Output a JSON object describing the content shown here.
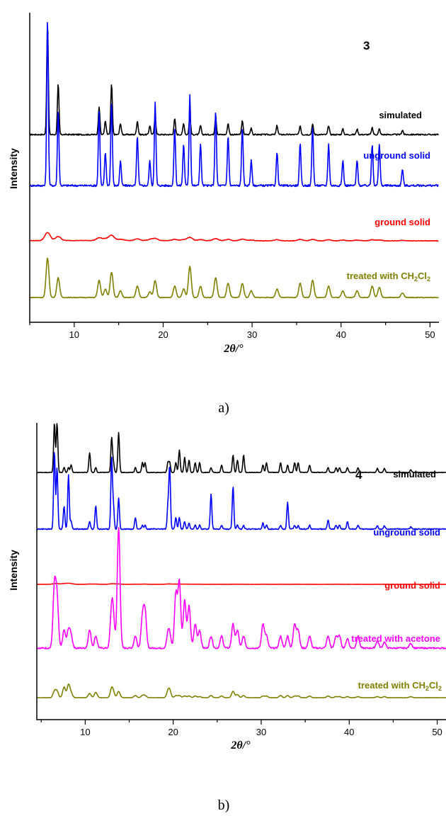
{
  "chart_data": [
    {
      "type": "line",
      "panel_letter": "a)",
      "sample_number": "3",
      "xlabel": "2θ/°",
      "ylabel": "Intensity",
      "xlim": [
        5,
        51
      ],
      "xticks": [
        10,
        20,
        30,
        40,
        50
      ],
      "peaks_x": [
        7.0,
        8.2,
        12.8,
        13.5,
        14.2,
        15.2,
        17.1,
        18.5,
        19.1,
        21.3,
        22.3,
        23.0,
        24.2,
        25.9,
        27.3,
        28.9,
        29.9,
        32.8,
        35.4,
        36.8,
        38.6,
        40.2,
        41.8,
        43.5,
        44.3,
        46.9
      ],
      "series": [
        {
          "name": "simulated",
          "color": "#000000",
          "values": [
            1.0,
            0.45,
            0.25,
            0.12,
            0.45,
            0.1,
            0.12,
            0.08,
            0.15,
            0.14,
            0.1,
            0.16,
            0.08,
            0.15,
            0.1,
            0.12,
            0.06,
            0.08,
            0.08,
            0.09,
            0.08,
            0.05,
            0.05,
            0.06,
            0.05,
            0.04
          ]
        },
        {
          "name": "unground solid",
          "color": "#0000ff",
          "values": [
            1.0,
            0.45,
            0.45,
            0.2,
            0.5,
            0.15,
            0.3,
            0.15,
            0.5,
            0.35,
            0.25,
            0.55,
            0.25,
            0.45,
            0.3,
            0.35,
            0.15,
            0.2,
            0.25,
            0.35,
            0.25,
            0.15,
            0.15,
            0.25,
            0.25,
            0.1
          ]
        },
        {
          "name": "ground solid",
          "color": "#ff0000",
          "values": [
            0.3,
            0.15,
            0.1,
            0.06,
            0.2,
            0.05,
            0.06,
            0.04,
            0.08,
            0.05,
            0.04,
            0.12,
            0.04,
            0.08,
            0.05,
            0.06,
            0.03,
            0.04,
            0.05,
            0.05,
            0.04,
            0.03,
            0.03,
            0.04,
            0.03,
            0.02
          ]
        },
        {
          "name": "treated with CH2Cl2",
          "color": "#808000",
          "values": [
            0.7,
            0.35,
            0.3,
            0.15,
            0.45,
            0.12,
            0.2,
            0.1,
            0.3,
            0.2,
            0.15,
            0.55,
            0.2,
            0.35,
            0.25,
            0.25,
            0.12,
            0.15,
            0.25,
            0.3,
            0.2,
            0.12,
            0.12,
            0.2,
            0.18,
            0.08
          ]
        }
      ]
    },
    {
      "type": "line",
      "panel_letter": "b)",
      "sample_number": "4",
      "xlabel": "2θ/°",
      "ylabel": "Intensity",
      "xlim": [
        4.5,
        51
      ],
      "xticks": [
        10,
        20,
        30,
        40,
        50
      ],
      "peaks_x": [
        6.5,
        6.8,
        7.6,
        8.1,
        8.4,
        10.5,
        11.2,
        13.0,
        13.2,
        13.8,
        15.7,
        16.5,
        16.8,
        19.4,
        19.6,
        20.3,
        20.7,
        21.3,
        21.8,
        22.5,
        23.0,
        24.3,
        25.5,
        26.8,
        27.3,
        28.0,
        30.2,
        30.6,
        32.2,
        33.0,
        33.8,
        34.2,
        35.5,
        37.6,
        38.5,
        38.9,
        39.8,
        41.0,
        43.2,
        44.0,
        47.0
      ],
      "series": [
        {
          "name": "simulated",
          "color": "#000000",
          "values": [
            1.0,
            1.0,
            0.1,
            0.1,
            0.15,
            0.4,
            0.1,
            0.7,
            0.2,
            0.8,
            0.1,
            0.2,
            0.2,
            0.2,
            0.2,
            0.2,
            0.45,
            0.3,
            0.25,
            0.2,
            0.2,
            0.1,
            0.15,
            0.35,
            0.25,
            0.35,
            0.15,
            0.2,
            0.2,
            0.15,
            0.2,
            0.2,
            0.15,
            0.1,
            0.1,
            0.1,
            0.1,
            0.1,
            0.08,
            0.08,
            0.05
          ]
        },
        {
          "name": "unground solid",
          "color": "#0000ff",
          "values": [
            1.0,
            0.8,
            0.3,
            0.7,
            0.1,
            0.1,
            0.3,
            0.9,
            0.3,
            0.4,
            0.15,
            0.05,
            0.05,
            0.3,
            0.8,
            0.15,
            0.15,
            0.1,
            0.08,
            0.05,
            0.05,
            0.45,
            0.05,
            0.55,
            0.05,
            0.05,
            0.08,
            0.05,
            0.05,
            0.35,
            0.05,
            0.05,
            0.05,
            0.12,
            0.05,
            0.05,
            0.1,
            0.05,
            0.04,
            0.04,
            0.03
          ]
        },
        {
          "name": "ground solid",
          "color": "#ff0000",
          "values": [
            0.1,
            0.1,
            0.15,
            0.15,
            0.1,
            0.05,
            0.05,
            0.08,
            0.05,
            0.08,
            0.03,
            0.03,
            0.03,
            0.05,
            0.05,
            0.04,
            0.04,
            0.03,
            0.03,
            0.02,
            0.02,
            0.02,
            0.02,
            0.03,
            0.02,
            0.02,
            0.02,
            0.02,
            0.02,
            0.02,
            0.02,
            0.02,
            0.02,
            0.02,
            0.02,
            0.02,
            0.02,
            0.02,
            0.02,
            0.02,
            0.02
          ]
        },
        {
          "name": "treated with acetone",
          "color": "#ff00ff",
          "values": [
            0.5,
            0.4,
            0.15,
            0.15,
            0.1,
            0.15,
            0.1,
            0.3,
            0.2,
            1.0,
            0.1,
            0.25,
            0.3,
            0.1,
            0.1,
            0.45,
            0.55,
            0.4,
            0.35,
            0.2,
            0.15,
            0.1,
            0.1,
            0.2,
            0.15,
            0.1,
            0.2,
            0.1,
            0.1,
            0.1,
            0.2,
            0.15,
            0.1,
            0.1,
            0.1,
            0.1,
            0.08,
            0.1,
            0.06,
            0.05,
            0.04
          ]
        },
        {
          "name": "treated with CH2Cl2",
          "color": "#808000",
          "values": [
            0.3,
            0.3,
            0.5,
            0.6,
            0.2,
            0.2,
            0.25,
            0.4,
            0.2,
            0.3,
            0.1,
            0.1,
            0.1,
            0.25,
            0.3,
            0.1,
            0.1,
            0.08,
            0.08,
            0.08,
            0.05,
            0.1,
            0.08,
            0.3,
            0.15,
            0.1,
            0.08,
            0.08,
            0.1,
            0.1,
            0.08,
            0.08,
            0.08,
            0.08,
            0.05,
            0.05,
            0.05,
            0.05,
            0.05,
            0.05,
            0.05
          ]
        }
      ]
    }
  ]
}
